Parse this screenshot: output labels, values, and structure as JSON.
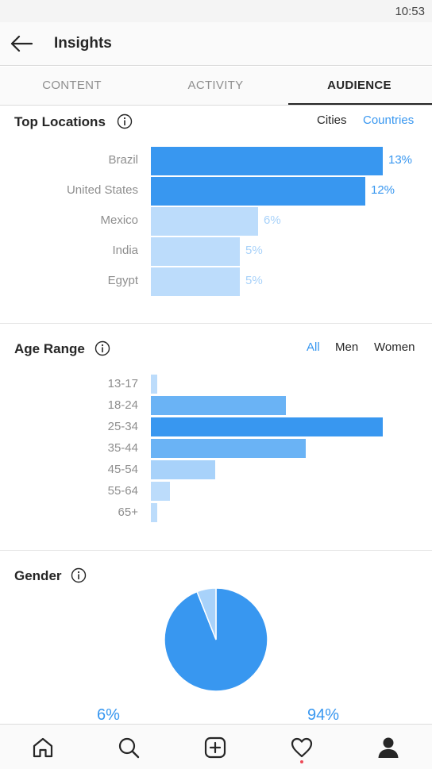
{
  "status_bar": {
    "time": "10:53"
  },
  "header": {
    "title": "Insights",
    "back_icon": "arrow-left-icon"
  },
  "tabs": [
    {
      "label": "CONTENT",
      "active": false
    },
    {
      "label": "ACTIVITY",
      "active": false
    },
    {
      "label": "AUDIENCE",
      "active": true
    }
  ],
  "top_locations": {
    "title": "Top Locations",
    "filters": [
      {
        "label": "Cities",
        "active": false
      },
      {
        "label": "Countries",
        "active": true
      }
    ],
    "items": [
      {
        "label": "Brazil",
        "value": 13,
        "display": "13%"
      },
      {
        "label": "United States",
        "value": 12,
        "display": "12%"
      },
      {
        "label": "Mexico",
        "value": 6,
        "display": "6%"
      },
      {
        "label": "India",
        "value": 5,
        "display": "5%"
      },
      {
        "label": "Egypt",
        "value": 5,
        "display": "5%"
      }
    ]
  },
  "age_range": {
    "title": "Age Range",
    "filters": [
      {
        "label": "All",
        "active": true
      },
      {
        "label": "Men",
        "active": false
      },
      {
        "label": "Women",
        "active": false
      }
    ],
    "items": [
      {
        "label": "13-17",
        "value": 1
      },
      {
        "label": "18-24",
        "value": 21
      },
      {
        "label": "25-34",
        "value": 36
      },
      {
        "label": "35-44",
        "value": 24
      },
      {
        "label": "45-54",
        "value": 10
      },
      {
        "label": "55-64",
        "value": 3
      },
      {
        "label": "65+",
        "value": 1
      }
    ]
  },
  "gender": {
    "title": "Gender",
    "slices": [
      {
        "value": 6,
        "display": "6%"
      },
      {
        "value": 94,
        "display": "94%"
      }
    ]
  },
  "colors": {
    "accent": "#3897f0",
    "bar_strong": "#3897f0",
    "bar_medium": "#6ab3f5",
    "bar_light": "#a8d2fa",
    "bar_lighter": "#bcdcfb"
  },
  "bottom_nav": [
    {
      "icon": "home-icon"
    },
    {
      "icon": "search-icon"
    },
    {
      "icon": "add-post-icon"
    },
    {
      "icon": "heart-icon"
    },
    {
      "icon": "profile-icon"
    }
  ],
  "chart_data": [
    {
      "type": "bar",
      "title": "Top Locations",
      "orientation": "horizontal",
      "categories": [
        "Brazil",
        "United States",
        "Mexico",
        "India",
        "Egypt"
      ],
      "values": [
        13,
        12,
        6,
        5,
        5
      ],
      "unit": "%"
    },
    {
      "type": "bar",
      "title": "Age Range",
      "orientation": "horizontal",
      "categories": [
        "13-17",
        "18-24",
        "25-34",
        "35-44",
        "45-54",
        "55-64",
        "65+"
      ],
      "values": [
        1,
        21,
        36,
        24,
        10,
        3,
        1
      ],
      "unit": "%"
    },
    {
      "type": "pie",
      "title": "Gender",
      "values": [
        6,
        94
      ],
      "labels": [
        "6%",
        "94%"
      ],
      "unit": "%"
    }
  ]
}
